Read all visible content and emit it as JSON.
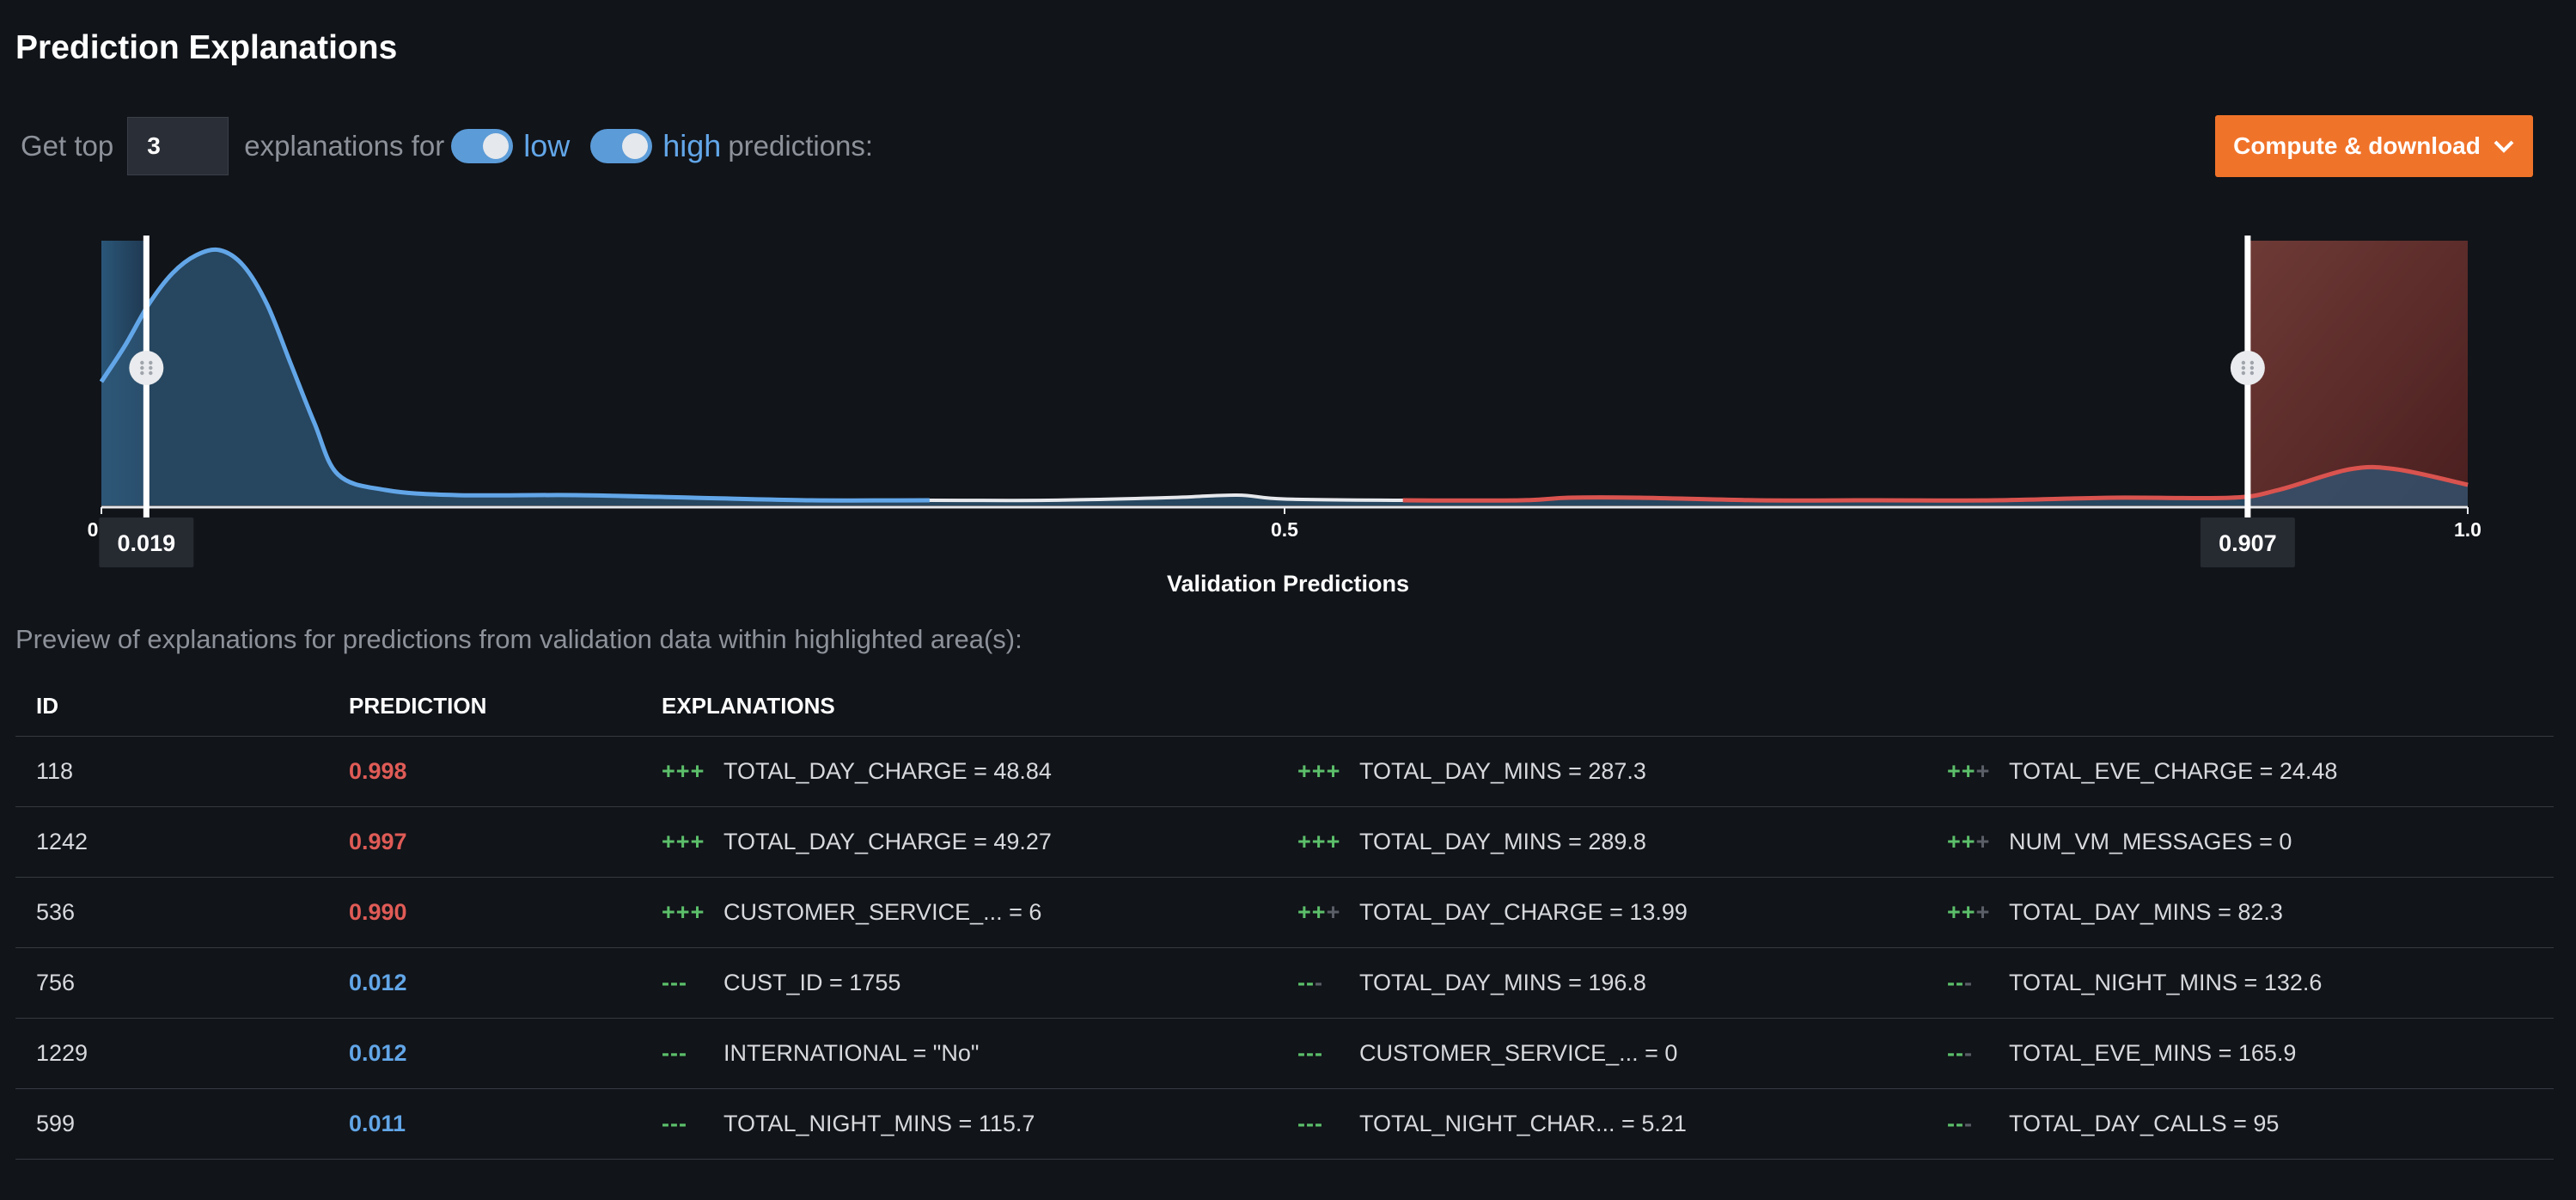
{
  "page": {
    "title": "Prediction Explanations"
  },
  "controls": {
    "get_top_label": "Get top",
    "top_n": "3",
    "explanations_for_label": "explanations for",
    "low_label": "low",
    "low_enabled": true,
    "high_label": "high",
    "high_enabled": true,
    "predictions_label": "predictions:"
  },
  "compute_button": {
    "label": "Compute & download",
    "icon": "chevron-down-icon"
  },
  "chart_data": {
    "type": "area",
    "xlabel": "Validation Predictions",
    "x_ticks": [
      "0",
      "0.5",
      "1.0"
    ],
    "xlim": [
      0,
      1
    ],
    "low_threshold": 0.019,
    "high_threshold": 0.907,
    "low_threshold_label": "0.019",
    "high_threshold_label": "0.907",
    "density_x": [
      0,
      0.01,
      0.02,
      0.03,
      0.04,
      0.05,
      0.06,
      0.07,
      0.08,
      0.09,
      0.1,
      0.12,
      0.15,
      0.2,
      0.25,
      0.3,
      0.35,
      0.4,
      0.45,
      0.48,
      0.5,
      0.55,
      0.6,
      0.62,
      0.65,
      0.7,
      0.75,
      0.8,
      0.85,
      0.9,
      0.92,
      0.95,
      0.97,
      1.0
    ],
    "density_y": [
      0.48,
      0.62,
      0.78,
      0.9,
      0.97,
      0.99,
      0.93,
      0.78,
      0.55,
      0.32,
      0.12,
      0.06,
      0.04,
      0.04,
      0.03,
      0.02,
      0.02,
      0.02,
      0.03,
      0.04,
      0.025,
      0.02,
      0.02,
      0.03,
      0.03,
      0.02,
      0.02,
      0.02,
      0.03,
      0.03,
      0.06,
      0.14,
      0.14,
      0.08
    ],
    "colors": {
      "low": "#62a6e8",
      "high": "#d9534f",
      "low_fill": "#2d4f6c",
      "high_fill": "#5a2a2a"
    }
  },
  "preview": {
    "text": "Preview of explanations for predictions from validation data within highlighted area(s):"
  },
  "table": {
    "headers": [
      "ID",
      "PREDICTION",
      "EXPLANATIONS"
    ],
    "rows": [
      {
        "id": "118",
        "prediction": "0.998",
        "class": "high",
        "explanations": [
          {
            "sign": "+++",
            "strength": 3,
            "text": "TOTAL_DAY_CHARGE = 48.84"
          },
          {
            "sign": "+++",
            "strength": 3,
            "text": "TOTAL_DAY_MINS = 287.3"
          },
          {
            "sign": "+++",
            "strength": 2,
            "text": "TOTAL_EVE_CHARGE = 24.48"
          }
        ]
      },
      {
        "id": "1242",
        "prediction": "0.997",
        "class": "high",
        "explanations": [
          {
            "sign": "+++",
            "strength": 3,
            "text": "TOTAL_DAY_CHARGE = 49.27"
          },
          {
            "sign": "+++",
            "strength": 3,
            "text": "TOTAL_DAY_MINS = 289.8"
          },
          {
            "sign": "+++",
            "strength": 2,
            "text": "NUM_VM_MESSAGES = 0"
          }
        ]
      },
      {
        "id": "536",
        "prediction": "0.990",
        "class": "high",
        "explanations": [
          {
            "sign": "+++",
            "strength": 3,
            "text": "CUSTOMER_SERVICE_... = 6"
          },
          {
            "sign": "+++",
            "strength": 2,
            "text": "TOTAL_DAY_CHARGE = 13.99"
          },
          {
            "sign": "+++",
            "strength": 2,
            "text": "TOTAL_DAY_MINS = 82.3"
          }
        ]
      },
      {
        "id": "756",
        "prediction": "0.012",
        "class": "low",
        "explanations": [
          {
            "sign": "---",
            "strength": 3,
            "text": "CUST_ID = 1755"
          },
          {
            "sign": "---",
            "strength": 2,
            "text": "TOTAL_DAY_MINS = 196.8"
          },
          {
            "sign": "---",
            "strength": 2,
            "text": "TOTAL_NIGHT_MINS = 132.6"
          }
        ]
      },
      {
        "id": "1229",
        "prediction": "0.012",
        "class": "low",
        "explanations": [
          {
            "sign": "---",
            "strength": 3,
            "text": "INTERNATIONAL = \"No\""
          },
          {
            "sign": "---",
            "strength": 3,
            "text": "CUSTOMER_SERVICE_... = 0"
          },
          {
            "sign": "---",
            "strength": 2,
            "text": "TOTAL_EVE_MINS = 165.9"
          }
        ]
      },
      {
        "id": "599",
        "prediction": "0.011",
        "class": "low",
        "explanations": [
          {
            "sign": "---",
            "strength": 3,
            "text": "TOTAL_NIGHT_MINS = 115.7"
          },
          {
            "sign": "---",
            "strength": 3,
            "text": "TOTAL_NIGHT_CHAR...   = 5.21"
          },
          {
            "sign": "---",
            "strength": 2,
            "text": "TOTAL_DAY_CALLS = 95"
          }
        ]
      }
    ]
  },
  "colors": {
    "accent": "#f0732a",
    "positive": "#5cbf6a",
    "high_pred": "#e05b56",
    "low_pred": "#62a6e8",
    "muted": "#5a5e66"
  }
}
